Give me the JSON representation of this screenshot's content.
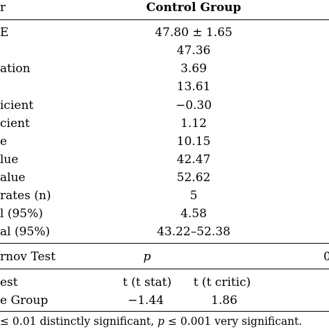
{
  "header": {
    "left_fragment": "r",
    "column_title": "Control Group"
  },
  "rows": [
    {
      "label": "E",
      "value": "47.80 ± 1.65"
    },
    {
      "label": "",
      "value": "47.36"
    },
    {
      "label": "ation",
      "value": "3.69"
    },
    {
      "label": "",
      "value": "13.61"
    },
    {
      "label": "icient",
      "value": "−0.30"
    },
    {
      "label": "cient",
      "value": "1.12"
    },
    {
      "label": "e",
      "value": "10.15"
    },
    {
      "label": "lue",
      "value": "42.47"
    },
    {
      "label": "alue",
      "value": "52.62"
    },
    {
      "label": "rates (n)",
      "value": "5"
    },
    {
      "label": "l (95%)",
      "value": "4.58"
    },
    {
      "label": "al (95%)",
      "value": "43.22–52.38"
    }
  ],
  "smirnov": {
    "label": "rnov Test",
    "p_symbol": "p",
    "right_fragment": "0"
  },
  "ttest": {
    "label": "est",
    "col1": "t (t stat)",
    "col2": "t (t critic)"
  },
  "group_row": {
    "label": "e Group",
    "stat": "−1.44",
    "critic": "1.86"
  },
  "footnote": {
    "leq1": "≤ 0.01 distinctly significant,",
    "p": "p",
    "leq2": "≤ 0.001 very significant."
  }
}
